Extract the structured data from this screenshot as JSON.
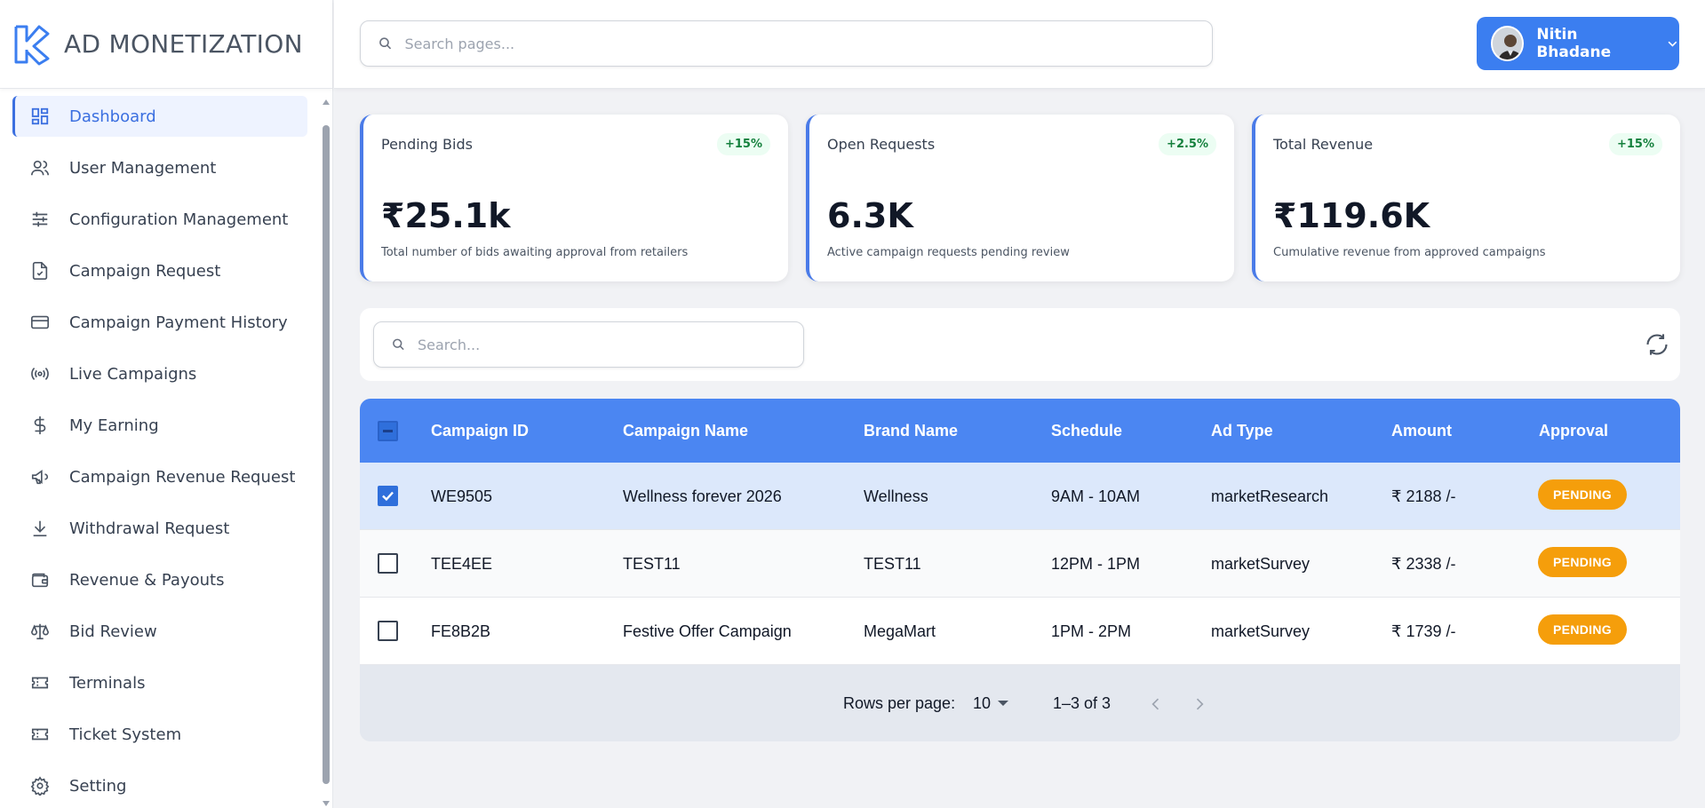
{
  "app": {
    "title": "AD MONETIZATION"
  },
  "sidebar": {
    "items": [
      {
        "label": "Dashboard",
        "icon": "dashboard-icon",
        "active": true
      },
      {
        "label": "User Management",
        "icon": "users-icon"
      },
      {
        "label": "Configuration Management",
        "icon": "sliders-icon"
      },
      {
        "label": "Campaign Request",
        "icon": "document-check-icon"
      },
      {
        "label": "Campaign Payment History",
        "icon": "credit-card-icon"
      },
      {
        "label": "Live Campaigns",
        "icon": "broadcast-icon"
      },
      {
        "label": "My Earning",
        "icon": "dollar-icon"
      },
      {
        "label": "Campaign Revenue Request",
        "icon": "megaphone-icon"
      },
      {
        "label": "Withdrawal Request",
        "icon": "download-icon"
      },
      {
        "label": "Revenue & Payouts",
        "icon": "wallet-icon"
      },
      {
        "label": "Bid Review",
        "icon": "scale-icon"
      },
      {
        "label": "Terminals",
        "icon": "ticket-icon"
      },
      {
        "label": "Ticket System",
        "icon": "ticket-icon"
      },
      {
        "label": "Setting",
        "icon": "gear-icon"
      }
    ]
  },
  "header": {
    "search_placeholder": "Search pages...",
    "user_name": "Nitin Bhadane"
  },
  "stats": [
    {
      "title": "Pending Bids",
      "badge": "+15%",
      "value": "₹25.1k",
      "desc": "Total number of bids awaiting approval from retailers"
    },
    {
      "title": "Open Requests",
      "badge": "+2.5%",
      "value": "6.3K",
      "desc": "Active campaign requests pending review"
    },
    {
      "title": "Total Revenue",
      "badge": "+15%",
      "value": "₹119.6K",
      "desc": "Cumulative revenue from approved campaigns"
    }
  ],
  "table": {
    "search_placeholder": "Search...",
    "columns": [
      "Campaign ID",
      "Campaign Name",
      "Brand Name",
      "Schedule",
      "Ad Type",
      "Amount",
      "Approval"
    ],
    "rows": [
      {
        "checked": true,
        "id": "WE9505",
        "name": "Wellness forever 2026",
        "brand": "Wellness",
        "schedule": "9AM - 10AM",
        "ad_type": "marketResearch",
        "amount": "₹ 2188 /-",
        "approval": "PENDING"
      },
      {
        "checked": false,
        "id": "TEE4EE",
        "name": "TEST11",
        "brand": "TEST11",
        "schedule": "12PM - 1PM",
        "ad_type": "marketSurvey",
        "amount": "₹ 2338 /-",
        "approval": "PENDING"
      },
      {
        "checked": false,
        "id": "FE8B2B",
        "name": "Festive Offer Campaign",
        "brand": "MegaMart",
        "schedule": "1PM - 2PM",
        "ad_type": "marketSurvey",
        "amount": "₹ 1739 /-",
        "approval": "PENDING"
      }
    ],
    "footer": {
      "rows_per_page_label": "Rows per page:",
      "rows_per_page_value": "10",
      "range": "1–3 of 3"
    }
  },
  "colors": {
    "accent": "#3b7ef0",
    "table_header": "#4b86f2",
    "pending": "#f59e0b",
    "badge_green": "#15803d"
  }
}
